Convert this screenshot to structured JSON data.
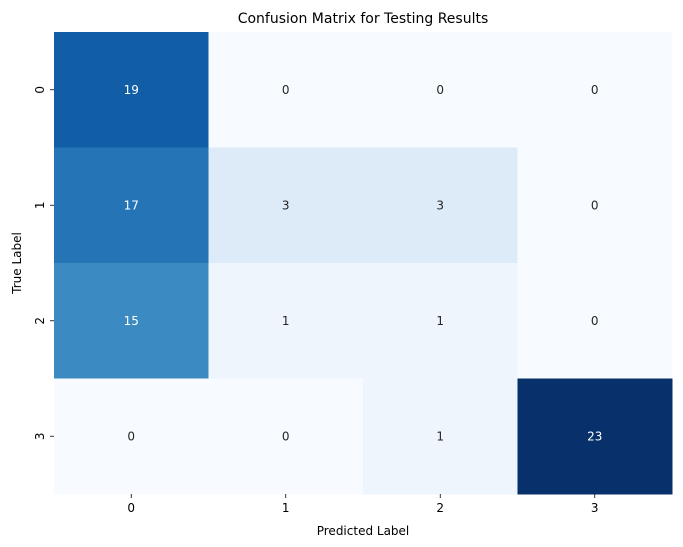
{
  "chart_data": {
    "type": "heatmap",
    "title": "Confusion Matrix for Testing Results",
    "xlabel": "Predicted Label",
    "ylabel": "True Label",
    "x_categories": [
      "0",
      "1",
      "2",
      "3"
    ],
    "y_categories": [
      "0",
      "1",
      "2",
      "3"
    ],
    "values": [
      [
        19,
        0,
        0,
        0
      ],
      [
        17,
        3,
        3,
        0
      ],
      [
        15,
        1,
        1,
        0
      ],
      [
        0,
        0,
        1,
        23
      ]
    ],
    "colormap": "Blues",
    "vmin": 0,
    "vmax": 23,
    "colorbar": false,
    "annotations": true,
    "grid": false
  }
}
